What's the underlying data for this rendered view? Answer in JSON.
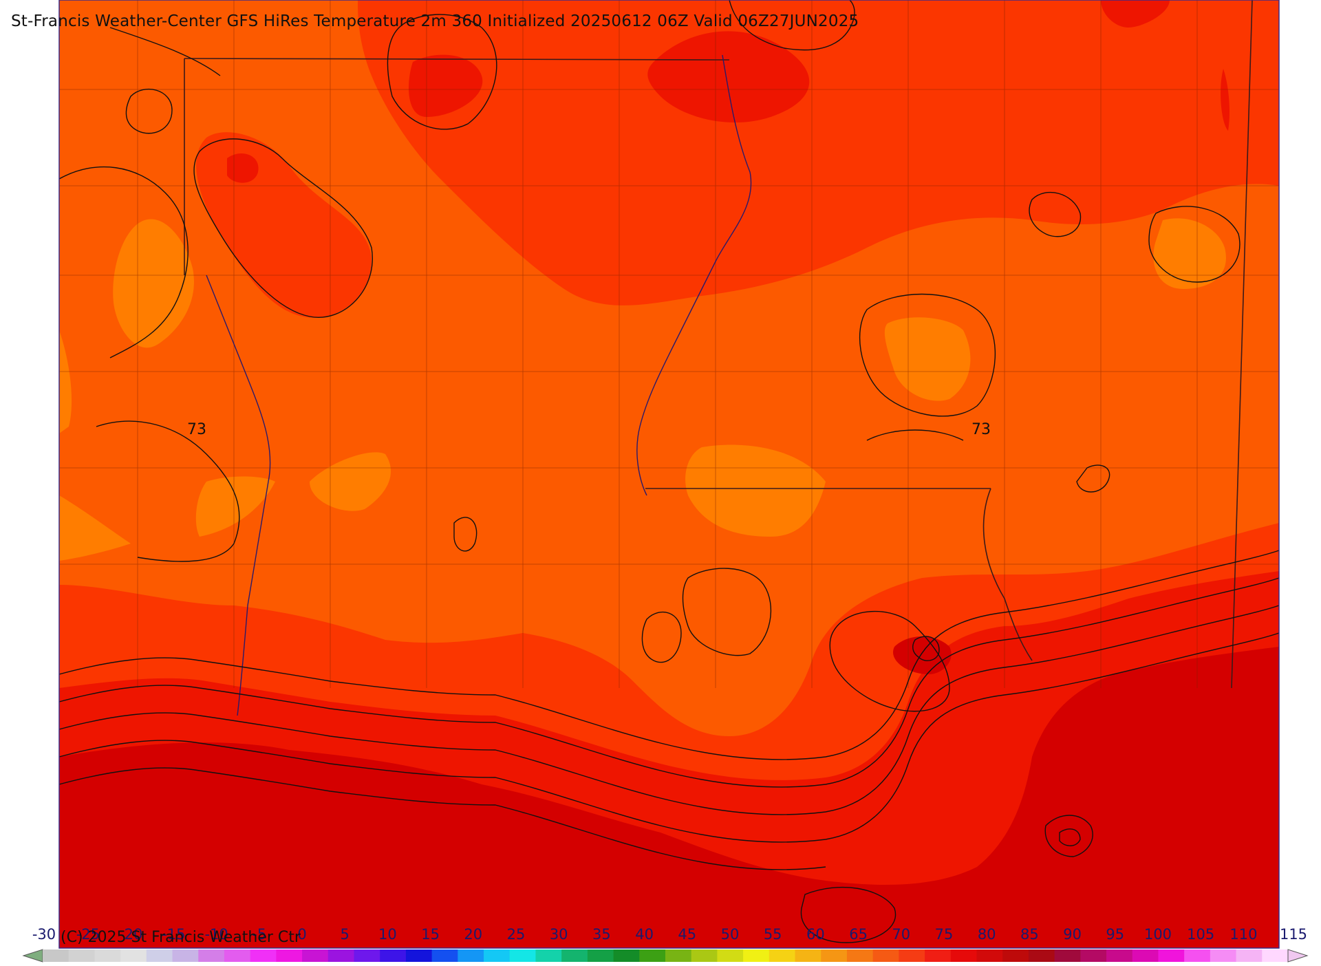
{
  "title": "St-Francis Weather-Center GFS HiRes Temperature 2m  360 Initialized 20250612 06Z Valid 06Z27JUN2025",
  "copyright": "(C) 2025 St Francis Weather Ctr",
  "contour_labels": [
    "73",
    "73"
  ],
  "colorbar": {
    "min_label": "-30",
    "max_label": "115",
    "labels": [
      "-25",
      "-20",
      "-15",
      "-10",
      "-5",
      "0",
      "5",
      "10",
      "15",
      "20",
      "25",
      "30",
      "35",
      "40",
      "45",
      "50",
      "55",
      "60",
      "65",
      "70",
      "75",
      "80",
      "85",
      "90",
      "95",
      "100",
      "105",
      "110"
    ],
    "colors": [
      "#c8c8c8",
      "#d2d2d2",
      "#dadada",
      "#e2e2e2",
      "#cfcfe8",
      "#c8b4e6",
      "#d47ee8",
      "#e35cef",
      "#f030f7",
      "#ee18e2",
      "#c814d4",
      "#9b14e0",
      "#6e18ec",
      "#3d14e8",
      "#1414dc",
      "#1450f0",
      "#1496f5",
      "#14c8f5",
      "#14e6e6",
      "#14d2aa",
      "#14b46e",
      "#14a046",
      "#148c28",
      "#3ca014",
      "#78b414",
      "#aac814",
      "#d2dc14",
      "#f0f014",
      "#f5d214",
      "#f5b414",
      "#f59614",
      "#f57814",
      "#f55a14",
      "#f53c14",
      "#f01e14",
      "#e60a0a",
      "#d20a0a",
      "#be0a0a",
      "#aa0a14",
      "#a00a3c",
      "#b40a64",
      "#c80a8c",
      "#dc0ab4",
      "#f014dc",
      "#f550f0",
      "#f58cf5",
      "#f5b4f5",
      "#ffd8ff"
    ],
    "low_arrow_color": "#7fae7f",
    "high_arrow_color": "#f0c8f0"
  },
  "palette": {
    "light_orange": "#ff7d00",
    "orange": "#fc5a00",
    "red_orange": "#fb3600",
    "red": "#ee1500",
    "dark_red": "#d40000",
    "frame": "#3a2a8a"
  }
}
